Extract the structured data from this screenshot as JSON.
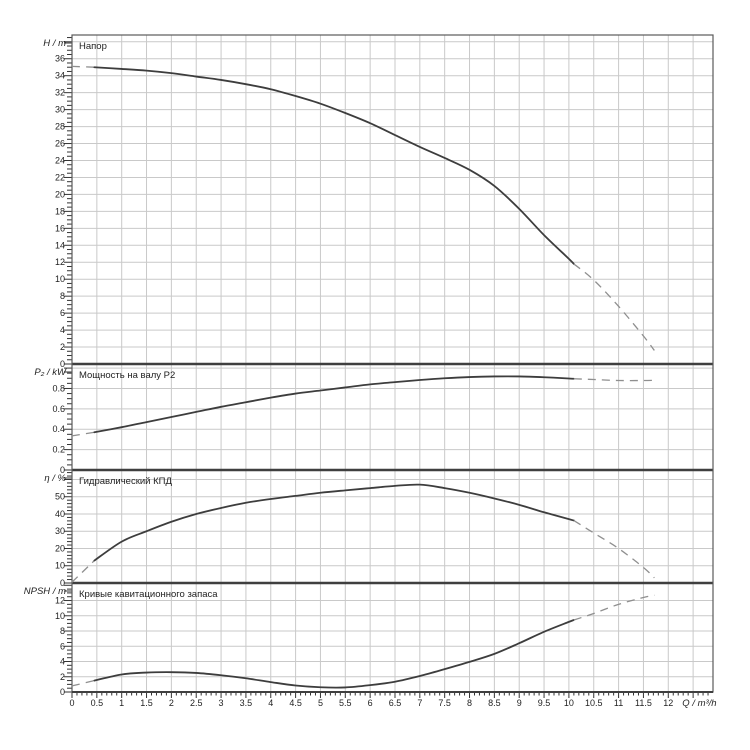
{
  "chart_data": {
    "type": "line",
    "title": "",
    "xlabel": "Q / m³/h",
    "x_min": 0,
    "x_max_frame": 12.9,
    "x_label_min": 0,
    "x_label_max": 12,
    "x_label_step": 0.5,
    "x_minor_step": 0.1,
    "grid": true,
    "legend_position": "none",
    "colors": {
      "background": "#ffffff",
      "curve": "#3d3d3d",
      "dash": "#8f8f8f",
      "grid": "#c9c9c9",
      "frame": "#5a5a5a",
      "separator": "#3f3f3f",
      "tick": "#333333",
      "text": "#1f1f1f"
    },
    "subplots": [
      {
        "name": "head",
        "title": "Напор",
        "ylabel": "H / m",
        "y_max": 38.8,
        "y_label_max": 36,
        "y_label_step": 2,
        "y_minor_step": 0.5,
        "y_decimals": 0,
        "height_weight": 329,
        "series": {
          "dash_start": [
            [
              0,
              35.1
            ],
            [
              0.45,
              35.0
            ]
          ],
          "solid": [
            [
              0.45,
              35.0
            ],
            [
              1,
              34.8
            ],
            [
              1.5,
              34.6
            ],
            [
              2,
              34.3
            ],
            [
              2.5,
              33.9
            ],
            [
              3,
              33.5
            ],
            [
              3.5,
              33.0
            ],
            [
              4,
              32.4
            ],
            [
              4.5,
              31.6
            ],
            [
              5,
              30.7
            ],
            [
              5.5,
              29.6
            ],
            [
              6,
              28.4
            ],
            [
              6.5,
              27.0
            ],
            [
              7,
              25.6
            ],
            [
              7.5,
              24.3
            ],
            [
              8,
              22.9
            ],
            [
              8.5,
              21.0
            ],
            [
              9,
              18.3
            ],
            [
              9.5,
              15.2
            ],
            [
              10,
              12.4
            ],
            [
              10.1,
              11.8
            ]
          ],
          "dash_end": [
            [
              10.1,
              11.8
            ],
            [
              10.5,
              9.9
            ],
            [
              11,
              6.8
            ],
            [
              11.5,
              3.3
            ],
            [
              11.72,
              1.6
            ]
          ]
        }
      },
      {
        "name": "power",
        "title": "Мощность на валу P2",
        "ylabel": "P₂ / kW",
        "y_max": 1.04,
        "y_label_max": 0.8,
        "y_label_step": 0.2,
        "y_minor_step": 0.05,
        "y_decimals": 1,
        "height_weight": 106,
        "series": {
          "dash_start": [
            [
              0,
              0.335
            ],
            [
              0.45,
              0.37
            ]
          ],
          "solid": [
            [
              0.45,
              0.37
            ],
            [
              1,
              0.42
            ],
            [
              1.5,
              0.47
            ],
            [
              2,
              0.52
            ],
            [
              2.5,
              0.57
            ],
            [
              3,
              0.62
            ],
            [
              3.5,
              0.665
            ],
            [
              4,
              0.71
            ],
            [
              4.5,
              0.75
            ],
            [
              5,
              0.78
            ],
            [
              5.5,
              0.81
            ],
            [
              6,
              0.84
            ],
            [
              6.5,
              0.862
            ],
            [
              7,
              0.883
            ],
            [
              7.5,
              0.9
            ],
            [
              8,
              0.912
            ],
            [
              8.5,
              0.918
            ],
            [
              9,
              0.918
            ],
            [
              9.5,
              0.91
            ],
            [
              10,
              0.898
            ],
            [
              10.1,
              0.895
            ]
          ],
          "dash_end": [
            [
              10.1,
              0.895
            ],
            [
              10.5,
              0.888
            ],
            [
              11,
              0.878
            ],
            [
              11.5,
              0.878
            ],
            [
              11.72,
              0.88
            ]
          ]
        }
      },
      {
        "name": "efficiency",
        "title": "Гидравлический КПД",
        "ylabel": "η / %",
        "y_max": 65.5,
        "y_label_max": 50,
        "y_label_step": 10,
        "y_minor_step": 2,
        "y_decimals": 0,
        "height_weight": 113,
        "series": {
          "dash_start": [
            [
              0,
              0.5
            ],
            [
              0.45,
              13
            ]
          ],
          "solid": [
            [
              0.45,
              13
            ],
            [
              1,
              24
            ],
            [
              1.5,
              30
            ],
            [
              2,
              35.5
            ],
            [
              2.5,
              40
            ],
            [
              3,
              43.5
            ],
            [
              3.5,
              46.5
            ],
            [
              4,
              48.7
            ],
            [
              4.5,
              50.5
            ],
            [
              5,
              52.3
            ],
            [
              5.5,
              53.7
            ],
            [
              6,
              55
            ],
            [
              6.5,
              56.3
            ],
            [
              7,
              57
            ],
            [
              7.5,
              55
            ],
            [
              8,
              52.3
            ],
            [
              8.5,
              49
            ],
            [
              9,
              45.3
            ],
            [
              9.5,
              41
            ],
            [
              10,
              37
            ],
            [
              10.1,
              36.2
            ]
          ],
          "dash_end": [
            [
              10.1,
              36.2
            ],
            [
              10.5,
              29
            ],
            [
              11,
              20
            ],
            [
              11.5,
              9
            ],
            [
              11.72,
              3
            ]
          ]
        }
      },
      {
        "name": "npsh",
        "title": "Кривые кавитационного запаса",
        "ylabel": "NPSH / m",
        "y_max": 14.3,
        "y_label_max": 12,
        "y_label_step": 2,
        "y_minor_step": 0.5,
        "y_decimals": 0,
        "height_weight": 109,
        "series": {
          "dash_start": [
            [
              0,
              0.8
            ],
            [
              0.45,
              1.5
            ]
          ],
          "solid": [
            [
              0.45,
              1.5
            ],
            [
              1,
              2.3
            ],
            [
              1.5,
              2.55
            ],
            [
              2,
              2.6
            ],
            [
              2.5,
              2.5
            ],
            [
              3,
              2.2
            ],
            [
              3.5,
              1.8
            ],
            [
              4,
              1.3
            ],
            [
              4.5,
              0.85
            ],
            [
              5,
              0.62
            ],
            [
              5.5,
              0.6
            ],
            [
              6,
              0.9
            ],
            [
              6.5,
              1.35
            ],
            [
              7,
              2.1
            ],
            [
              7.5,
              3.0
            ],
            [
              8,
              3.95
            ],
            [
              8.5,
              5.0
            ],
            [
              9,
              6.4
            ],
            [
              9.5,
              7.9
            ],
            [
              10,
              9.2
            ],
            [
              10.1,
              9.45
            ]
          ],
          "dash_end": [
            [
              10.1,
              9.45
            ],
            [
              10.5,
              10.3
            ],
            [
              11,
              11.5
            ],
            [
              11.5,
              12.4
            ],
            [
              11.72,
              12.7
            ]
          ]
        }
      }
    ]
  }
}
